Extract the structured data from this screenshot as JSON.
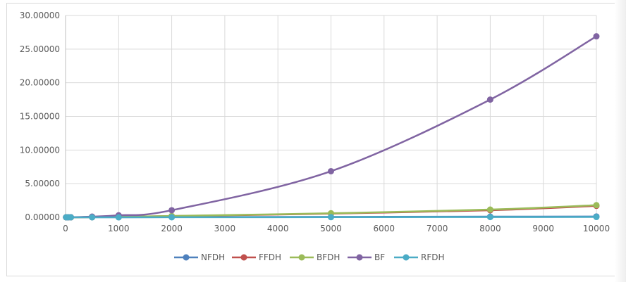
{
  "chart_data": {
    "type": "line",
    "title": "",
    "xlabel": "",
    "ylabel": "",
    "xlim": [
      0,
      10000
    ],
    "ylim": [
      0,
      30
    ],
    "x_ticks": [
      "0",
      "1000",
      "2000",
      "3000",
      "4000",
      "5000",
      "6000",
      "7000",
      "8000",
      "9000",
      "10000"
    ],
    "y_ticks": [
      "0.00000",
      "5.00000",
      "10.00000",
      "15.00000",
      "20.00000",
      "25.00000",
      "30.00000"
    ],
    "grid": "vertical and horizontal",
    "legend_position": "bottom",
    "series": [
      {
        "name": "NFDH",
        "color": "#4f81bd",
        "x": [
          10,
          50,
          100,
          500,
          1000,
          2000,
          5000,
          8000,
          10000
        ],
        "y": [
          0.0,
          0.0,
          0.0,
          0.01,
          0.01,
          0.03,
          0.06,
          0.1,
          0.12
        ]
      },
      {
        "name": "FFDH",
        "color": "#c0504d",
        "x": [
          10,
          50,
          100,
          500,
          1000,
          2000,
          5000,
          8000,
          10000
        ],
        "y": [
          0.0,
          0.0,
          0.0,
          0.02,
          0.06,
          0.18,
          0.55,
          1.05,
          1.7
        ]
      },
      {
        "name": "BFDH",
        "color": "#9bbb59",
        "x": [
          10,
          50,
          100,
          500,
          1000,
          2000,
          5000,
          8000,
          10000
        ],
        "y": [
          0.0,
          0.0,
          0.0,
          0.02,
          0.07,
          0.2,
          0.6,
          1.15,
          1.8
        ]
      },
      {
        "name": "BF",
        "color": "#8064a2",
        "x": [
          10,
          50,
          100,
          500,
          1000,
          2000,
          5000,
          8000,
          10000
        ],
        "y": [
          0.0,
          0.0,
          0.01,
          0.1,
          0.3,
          1.05,
          6.85,
          17.5,
          26.9
        ]
      },
      {
        "name": "RFDH",
        "color": "#4bacc6",
        "x": [
          10,
          50,
          100,
          500,
          1000,
          2000,
          5000,
          8000,
          10000
        ],
        "y": [
          0.0,
          0.0,
          0.0,
          0.0,
          0.0,
          0.01,
          0.02,
          0.04,
          0.05
        ]
      }
    ]
  }
}
